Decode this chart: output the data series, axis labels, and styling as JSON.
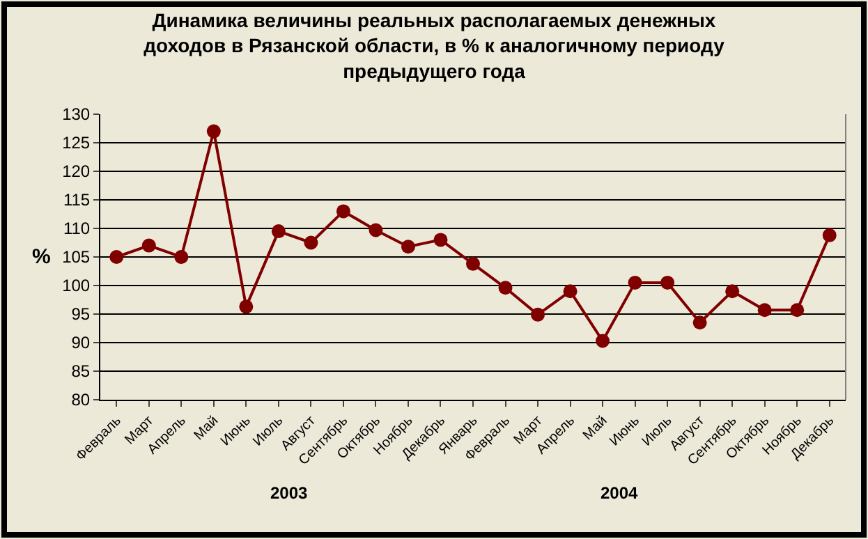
{
  "chart_data": {
    "type": "line",
    "title": "Динамика величины реальных располагаемых денежных\nдоходов в Рязанской области, в % к аналогичному периоду\nпредыдущего года",
    "ylabel": "%",
    "categories": [
      "Февраль",
      "Март",
      "Апрель",
      "Май",
      "Июнь",
      "Июль",
      "Август",
      "Сентябрь",
      "Октябрь",
      "Ноябрь",
      "Декабрь",
      "Январь",
      "Февраль",
      "Март",
      "Апрель",
      "Май",
      "Июнь",
      "Июль",
      "Август",
      "Сентябрь",
      "Октябрь",
      "Ноябрь",
      "Декабрь"
    ],
    "series": [
      {
        "color": "#800000",
        "values": [
          105,
          107,
          105,
          127,
          96.3,
          109.5,
          107.5,
          113,
          109.7,
          106.8,
          108,
          103.8,
          99.6,
          94.9,
          99,
          90.3,
          100.5,
          100.5,
          93.5,
          99,
          95.7,
          95.7,
          108.8
        ]
      }
    ],
    "ylim": [
      80,
      130
    ],
    "yticks": [
      80,
      85,
      90,
      95,
      100,
      105,
      110,
      115,
      120,
      125,
      130
    ],
    "grid": "y",
    "marker": "circle",
    "line_style": "solid",
    "annotations": [
      "2003",
      "2004"
    ]
  }
}
